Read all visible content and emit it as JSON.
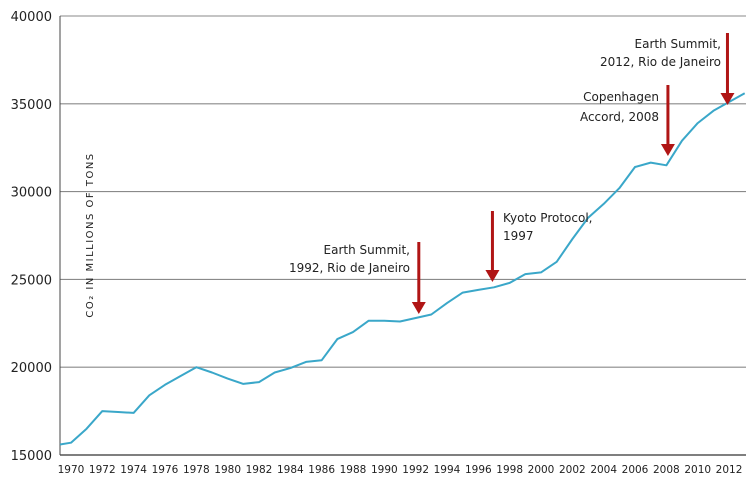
{
  "chart_data": {
    "type": "line",
    "title": "",
    "xlabel": "",
    "ylabel": "CO₂ IN MILLIONS OF TONS",
    "xlim": [
      1969.3,
      2012.7
    ],
    "ylim": [
      15000,
      40000
    ],
    "yticks": [
      15000,
      20000,
      25000,
      30000,
      35000,
      40000
    ],
    "xticks": [
      1970,
      1972,
      1974,
      1976,
      1978,
      1980,
      1982,
      1984,
      1986,
      1988,
      1990,
      1992,
      1994,
      1996,
      1998,
      2000,
      2002,
      2004,
      2006,
      2008,
      2010,
      2012
    ],
    "grid": "horizontal",
    "line_color": "#3aa7c9",
    "arrow_color": "#b01515",
    "series": [
      {
        "x": [
          1969,
          1970,
          1971,
          1972,
          1973,
          1974,
          1975,
          1976,
          1977,
          1978,
          1979,
          1980,
          1981,
          1982,
          1983,
          1984,
          1985,
          1986,
          1987,
          1988,
          1989,
          1990,
          1991,
          1992,
          1993,
          1994,
          1995,
          1996,
          1997,
          1998,
          1999,
          2000,
          2001,
          2002,
          2003,
          2004,
          2005,
          2006,
          2007,
          2008,
          2009,
          2010,
          2011,
          2012,
          2013
        ],
        "y": [
          15600,
          15700,
          16500,
          17500,
          17450,
          17400,
          18400,
          19000,
          19500,
          20000,
          19700,
          19350,
          19050,
          19150,
          19700,
          19950,
          20300,
          20400,
          21600,
          22000,
          22650,
          22650,
          22600,
          22800,
          23000,
          23650,
          24250,
          24400,
          24550,
          24800,
          25300,
          25400,
          26000,
          27300,
          28500,
          29300,
          30200,
          31400,
          31650,
          31500,
          32900,
          33900,
          34600,
          35100,
          35600
        ]
      }
    ],
    "annotations": [
      {
        "id": "earth-summit-1992",
        "lines": [
          "Earth Summit,",
          "1992, Rio de Janeiro"
        ],
        "x": 1992
      },
      {
        "id": "kyoto-protocol",
        "lines": [
          "Kyoto Protocol,",
          "1997"
        ],
        "x": 1997
      },
      {
        "id": "copenhagen-accord",
        "lines": [
          "Copenhagen",
          "Accord, 2008"
        ],
        "x": 2008
      },
      {
        "id": "earth-summit-2012",
        "lines": [
          "Earth Summit,",
          "2012, Rio de Janeiro"
        ],
        "x": 2012
      }
    ]
  }
}
